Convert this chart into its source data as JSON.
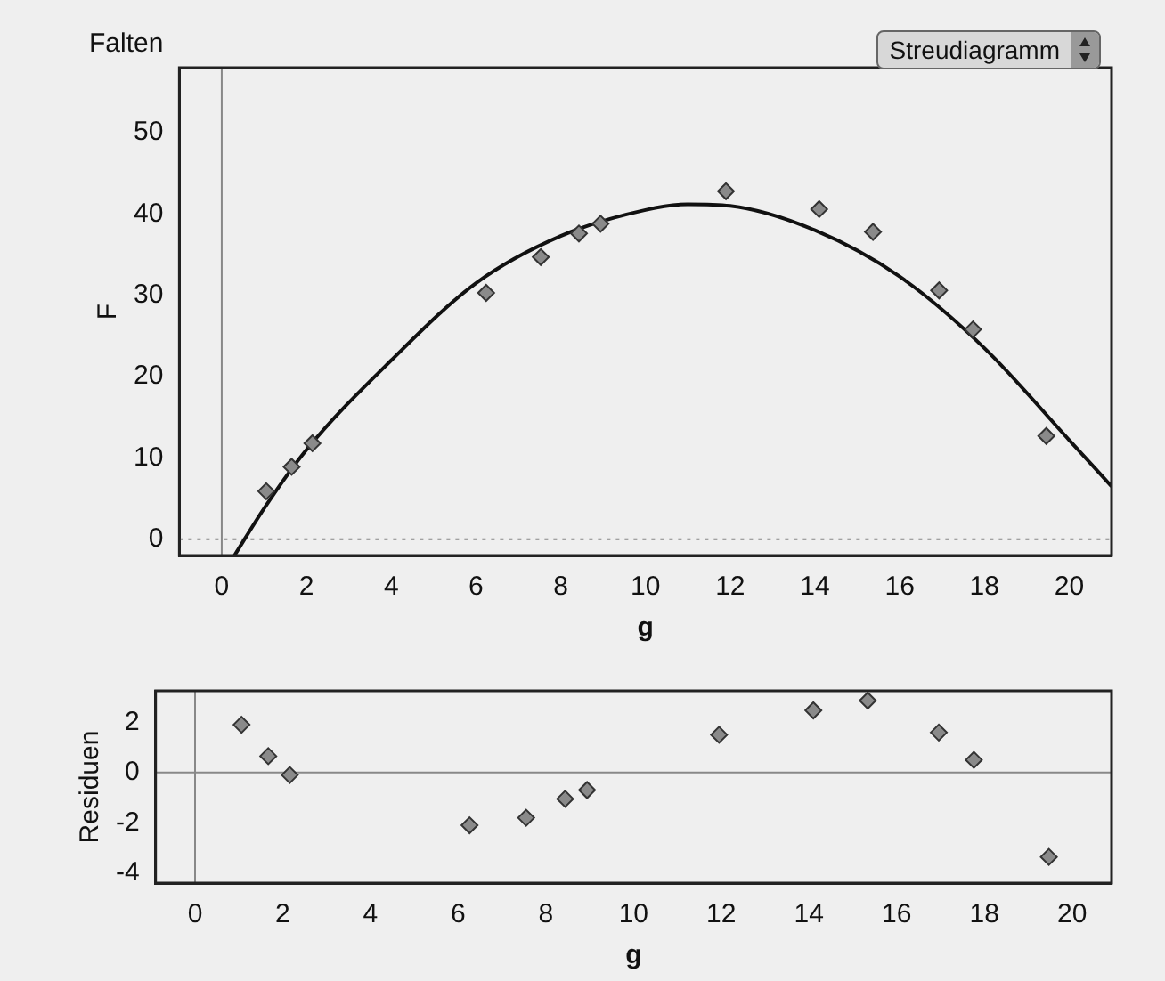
{
  "chart_data": [
    {
      "type": "scatter",
      "title": "Falten",
      "xlabel": "g",
      "ylabel": "F",
      "annotations": [
        "Streudiagramm"
      ],
      "marker": "diamond",
      "grid": false,
      "legend": false,
      "xlim": [
        -1,
        21
      ],
      "xticks": [
        0,
        2,
        4,
        6,
        8,
        10,
        12,
        14,
        16,
        18,
        20
      ],
      "ylim": [
        -2,
        58
      ],
      "yticks": [
        0,
        10,
        20,
        30,
        40,
        50
      ],
      "ref_lines": [
        {
          "axis": "x",
          "value": 0,
          "color": "#888888"
        },
        {
          "axis": "y",
          "value": 0,
          "color": "#888888",
          "line_style": "dotted"
        }
      ],
      "series": [
        {
          "type": "scatter",
          "color": "#8a8a8a",
          "x": [
            1.05,
            1.65,
            2.14,
            6.24,
            7.53,
            8.43,
            8.94,
            11.9,
            14.1,
            15.37,
            16.93,
            17.73,
            19.46
          ],
          "values": [
            5.9,
            8.9,
            11.8,
            30.3,
            34.7,
            37.6,
            38.8,
            42.8,
            40.6,
            37.8,
            30.6,
            25.8,
            12.7
          ]
        },
        {
          "type": "line",
          "color": "#111111",
          "marker": "none",
          "x": [
            0.3,
            1,
            2,
            4,
            6,
            8,
            10,
            11,
            12,
            14,
            16,
            18,
            20,
            21
          ],
          "values": [
            -2,
            3.8,
            11,
            22,
            31.5,
            37.3,
            40.5,
            41.2,
            41,
            38,
            32.3,
            23.5,
            12.2,
            6.5
          ]
        }
      ]
    },
    {
      "type": "scatter",
      "xlabel": "g",
      "ylabel": "Residuen",
      "marker": "diamond",
      "grid": false,
      "legend": false,
      "xlim": [
        -0.9,
        20.9
      ],
      "xticks": [
        0,
        2,
        4,
        6,
        8,
        10,
        12,
        14,
        16,
        18,
        20
      ],
      "ylim": [
        -4.4,
        3.25
      ],
      "yticks": [
        -4,
        -2,
        0,
        2
      ],
      "ref_lines": [
        {
          "axis": "x",
          "value": 0,
          "color": "#888888"
        },
        {
          "axis": "y",
          "value": 0,
          "color": "#888888"
        }
      ],
      "series": [
        {
          "type": "scatter",
          "color": "#8a8a8a",
          "x": [
            1.06,
            1.67,
            2.16,
            6.26,
            7.55,
            8.44,
            8.94,
            11.95,
            14.1,
            15.34,
            16.96,
            17.76,
            19.47
          ],
          "values": [
            1.9,
            0.65,
            -0.1,
            -2.1,
            -1.8,
            -1.05,
            -0.7,
            1.5,
            2.47,
            2.86,
            1.59,
            0.5,
            -3.36
          ]
        }
      ]
    }
  ]
}
